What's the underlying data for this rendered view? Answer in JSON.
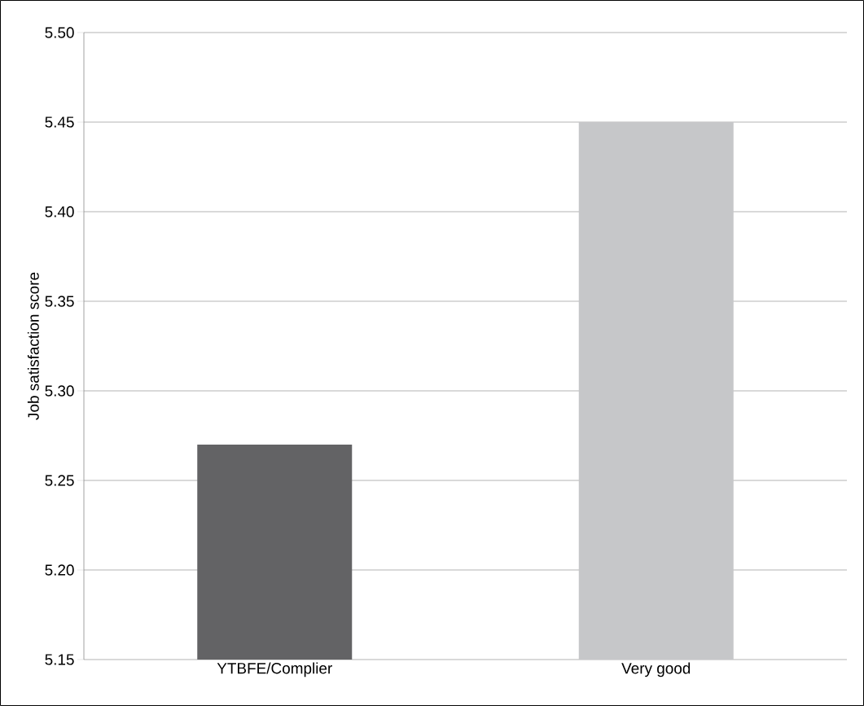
{
  "chart_data": {
    "type": "bar",
    "ylabel": "Job satisfaction score",
    "categories": [
      "YTBFE/Complier",
      "Very good"
    ],
    "values": [
      5.27,
      5.45
    ],
    "colors": [
      "#636365",
      "#c6c7c9"
    ],
    "ylim": [
      5.15,
      5.5
    ],
    "yticks": [
      5.15,
      {
        "value": 5.2,
        "label": "5.20"
      },
      5.25,
      {
        "value": 5.3,
        "label": "5.30"
      },
      5.35,
      {
        "value": 5.4,
        "label": "5.40"
      },
      5.45,
      {
        "value": 5.5,
        "label": "5.50"
      }
    ],
    "grid": "y"
  }
}
